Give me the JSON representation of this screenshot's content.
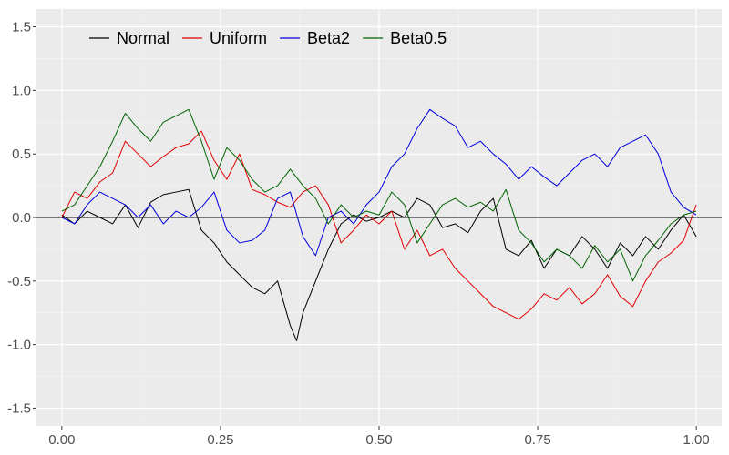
{
  "chart_data": {
    "type": "line",
    "title": "",
    "xlabel": "",
    "ylabel": "",
    "xlim": [
      -0.04,
      1.04
    ],
    "ylim": [
      -1.64,
      1.64
    ],
    "x_ticks": [
      0,
      0.25,
      0.5,
      0.75,
      1
    ],
    "x_tick_labels": [
      "0.00",
      "0.25",
      "0.50",
      "0.75",
      "1.00"
    ],
    "y_ticks": [
      -1.5,
      -1,
      -0.5,
      0,
      0.5,
      1,
      1.5
    ],
    "y_tick_labels": [
      "-1.5",
      "-1.0",
      "-0.5",
      "0.0",
      "0.5",
      "1.0",
      "1.5"
    ],
    "grid": true,
    "reference_line_y": 0,
    "legend_position": "top-left",
    "background": "#ebebeb",
    "series": [
      {
        "name": "Normal",
        "color": "#000000",
        "x": [
          0,
          0.02,
          0.04,
          0.06,
          0.08,
          0.1,
          0.12,
          0.14,
          0.16,
          0.18,
          0.2,
          0.22,
          0.24,
          0.26,
          0.28,
          0.3,
          0.32,
          0.34,
          0.36,
          0.37,
          0.38,
          0.4,
          0.42,
          0.44,
          0.46,
          0.48,
          0.5,
          0.52,
          0.54,
          0.56,
          0.58,
          0.6,
          0.62,
          0.64,
          0.66,
          0.68,
          0.7,
          0.72,
          0.74,
          0.76,
          0.78,
          0.8,
          0.82,
          0.84,
          0.86,
          0.88,
          0.9,
          0.92,
          0.94,
          0.96,
          0.98,
          1.0
        ],
        "y": [
          0.02,
          -0.05,
          0.05,
          0.0,
          -0.05,
          0.1,
          -0.08,
          0.12,
          0.18,
          0.2,
          0.22,
          -0.1,
          -0.2,
          -0.35,
          -0.45,
          -0.55,
          -0.6,
          -0.5,
          -0.85,
          -0.97,
          -0.75,
          -0.5,
          -0.25,
          -0.05,
          0.02,
          -0.03,
          0.0,
          0.05,
          0.0,
          0.15,
          0.1,
          -0.08,
          -0.05,
          -0.12,
          0.05,
          0.15,
          -0.25,
          -0.3,
          -0.18,
          -0.4,
          -0.25,
          -0.3,
          -0.15,
          -0.25,
          -0.4,
          -0.2,
          -0.3,
          -0.15,
          -0.25,
          -0.1,
          0.02,
          -0.15
        ]
      },
      {
        "name": "Uniform",
        "color": "#e00000",
        "x": [
          0,
          0.02,
          0.04,
          0.06,
          0.08,
          0.1,
          0.12,
          0.14,
          0.16,
          0.18,
          0.2,
          0.22,
          0.24,
          0.26,
          0.28,
          0.3,
          0.32,
          0.34,
          0.36,
          0.38,
          0.4,
          0.42,
          0.44,
          0.46,
          0.48,
          0.5,
          0.52,
          0.54,
          0.56,
          0.58,
          0.6,
          0.62,
          0.64,
          0.66,
          0.68,
          0.7,
          0.72,
          0.74,
          0.76,
          0.78,
          0.8,
          0.82,
          0.84,
          0.86,
          0.88,
          0.9,
          0.92,
          0.94,
          0.96,
          0.98,
          1.0
        ],
        "y": [
          0.0,
          0.2,
          0.15,
          0.28,
          0.35,
          0.6,
          0.5,
          0.4,
          0.48,
          0.55,
          0.58,
          0.68,
          0.45,
          0.3,
          0.5,
          0.22,
          0.18,
          0.12,
          0.08,
          0.2,
          0.25,
          0.1,
          -0.2,
          -0.1,
          0.02,
          -0.05,
          0.05,
          -0.25,
          -0.1,
          -0.3,
          -0.25,
          -0.4,
          -0.5,
          -0.6,
          -0.7,
          -0.75,
          -0.8,
          -0.72,
          -0.6,
          -0.65,
          -0.55,
          -0.68,
          -0.6,
          -0.45,
          -0.62,
          -0.7,
          -0.5,
          -0.35,
          -0.28,
          -0.18,
          0.1
        ]
      },
      {
        "name": "Beta2",
        "color": "#0000dd",
        "x": [
          0,
          0.02,
          0.04,
          0.06,
          0.08,
          0.1,
          0.12,
          0.14,
          0.16,
          0.18,
          0.2,
          0.22,
          0.24,
          0.26,
          0.28,
          0.3,
          0.32,
          0.34,
          0.36,
          0.38,
          0.4,
          0.42,
          0.44,
          0.46,
          0.48,
          0.5,
          0.52,
          0.54,
          0.56,
          0.58,
          0.6,
          0.62,
          0.64,
          0.66,
          0.68,
          0.7,
          0.72,
          0.74,
          0.76,
          0.78,
          0.8,
          0.82,
          0.84,
          0.86,
          0.88,
          0.9,
          0.92,
          0.94,
          0.96,
          0.98,
          1.0
        ],
        "y": [
          0.0,
          -0.05,
          0.1,
          0.2,
          0.15,
          0.1,
          0.0,
          0.1,
          -0.05,
          0.05,
          0.0,
          0.08,
          0.2,
          -0.1,
          -0.2,
          -0.18,
          -0.1,
          0.15,
          0.2,
          -0.15,
          -0.3,
          0.0,
          0.05,
          -0.05,
          0.1,
          0.2,
          0.4,
          0.5,
          0.7,
          0.85,
          0.78,
          0.72,
          0.55,
          0.6,
          0.5,
          0.42,
          0.3,
          0.4,
          0.32,
          0.25,
          0.35,
          0.45,
          0.5,
          0.4,
          0.55,
          0.6,
          0.65,
          0.5,
          0.2,
          0.08,
          0.02
        ]
      },
      {
        "name": "Beta0.5",
        "color": "#006400",
        "x": [
          0,
          0.02,
          0.04,
          0.06,
          0.08,
          0.1,
          0.12,
          0.14,
          0.16,
          0.18,
          0.2,
          0.22,
          0.24,
          0.26,
          0.28,
          0.3,
          0.32,
          0.34,
          0.36,
          0.38,
          0.4,
          0.42,
          0.44,
          0.46,
          0.48,
          0.5,
          0.52,
          0.54,
          0.56,
          0.58,
          0.6,
          0.62,
          0.64,
          0.66,
          0.68,
          0.7,
          0.72,
          0.74,
          0.76,
          0.78,
          0.8,
          0.82,
          0.84,
          0.86,
          0.88,
          0.9,
          0.92,
          0.94,
          0.96,
          0.98,
          1.0
        ],
        "y": [
          0.05,
          0.1,
          0.25,
          0.4,
          0.6,
          0.82,
          0.7,
          0.6,
          0.75,
          0.8,
          0.85,
          0.6,
          0.3,
          0.55,
          0.45,
          0.3,
          0.2,
          0.25,
          0.38,
          0.25,
          0.15,
          -0.05,
          0.1,
          0.0,
          0.05,
          0.02,
          0.2,
          0.1,
          -0.2,
          -0.05,
          0.1,
          0.15,
          0.08,
          0.12,
          0.05,
          0.22,
          -0.1,
          -0.2,
          -0.35,
          -0.25,
          -0.3,
          -0.4,
          -0.22,
          -0.35,
          -0.25,
          -0.5,
          -0.3,
          -0.18,
          -0.05,
          0.02,
          0.05
        ]
      }
    ]
  }
}
